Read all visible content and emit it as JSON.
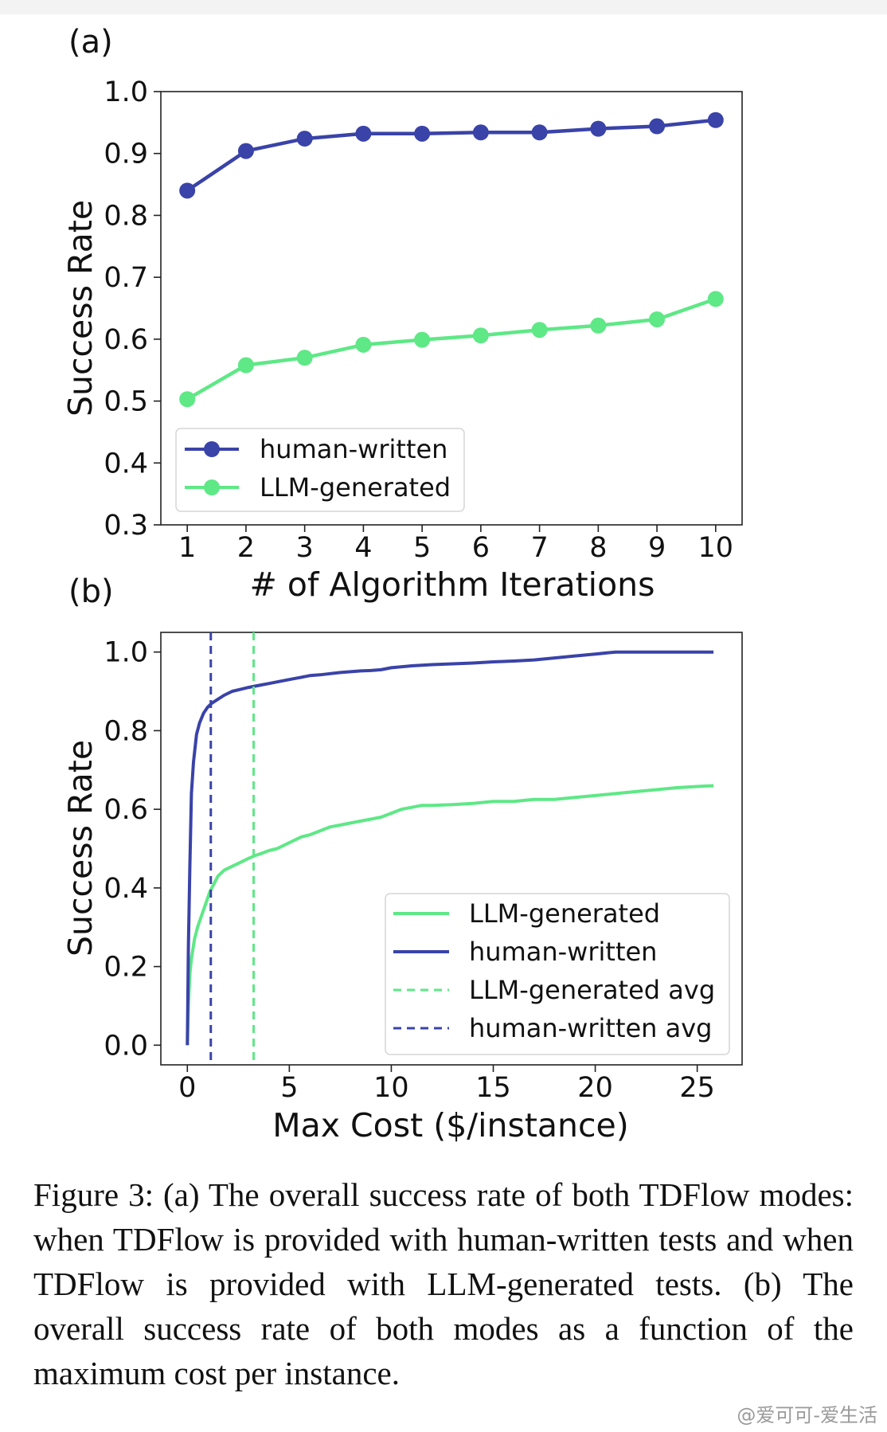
{
  "chart_data": [
    {
      "type": "line",
      "panel_label": "(a)",
      "xlabel": "# of Algorithm Iterations",
      "ylabel": "Success Rate",
      "xlim": [
        0.55,
        10.45
      ],
      "ylim": [
        0.3,
        1.0
      ],
      "x": [
        1,
        2,
        3,
        4,
        5,
        6,
        7,
        8,
        9,
        10
      ],
      "x_ticks": [
        1,
        2,
        3,
        4,
        5,
        6,
        7,
        8,
        9,
        10
      ],
      "y_ticks": [
        0.3,
        0.4,
        0.5,
        0.6,
        0.7,
        0.8,
        0.9,
        1.0
      ],
      "grid": false,
      "legend_position": "bottom-left",
      "series": [
        {
          "name": "human-written",
          "color": "#3a43a8",
          "marker": "circle",
          "values": [
            0.84,
            0.904,
            0.924,
            0.932,
            0.932,
            0.934,
            0.934,
            0.94,
            0.944,
            0.954
          ]
        },
        {
          "name": "LLM-generated",
          "color": "#5ee886",
          "marker": "circle",
          "values": [
            0.503,
            0.558,
            0.57,
            0.591,
            0.599,
            0.606,
            0.615,
            0.622,
            0.632,
            0.665
          ]
        }
      ]
    },
    {
      "type": "line",
      "panel_label": "(b)",
      "xlabel": "Max Cost ($/instance)",
      "ylabel": "Success Rate",
      "xlim": [
        -1.3,
        27.2
      ],
      "ylim": [
        -0.05,
        1.05
      ],
      "x_ticks": [
        0,
        5,
        10,
        15,
        20,
        25
      ],
      "y_ticks": [
        0.0,
        0.2,
        0.4,
        0.6,
        0.8,
        1.0
      ],
      "grid": false,
      "legend_position": "bottom-right",
      "series": [
        {
          "name": "LLM-generated",
          "color": "#5ee886",
          "style": "solid",
          "x": [
            0,
            0.05,
            0.12,
            0.2,
            0.35,
            0.5,
            0.7,
            0.9,
            1.1,
            1.3,
            1.5,
            1.8,
            2.2,
            2.6,
            3.0,
            3.3,
            3.6,
            4.0,
            4.4,
            4.8,
            5.2,
            5.6,
            6.0,
            6.5,
            7.0,
            7.5,
            8.0,
            8.5,
            9.0,
            9.5,
            10.0,
            10.5,
            11.0,
            11.5,
            12.0,
            13.0,
            14.0,
            15.0,
            16.0,
            17.0,
            18.0,
            19.0,
            20.0,
            21.0,
            22.0,
            23.0,
            24.0,
            25.0,
            25.8
          ],
          "values": [
            0.0,
            0.1,
            0.18,
            0.22,
            0.27,
            0.3,
            0.33,
            0.36,
            0.39,
            0.41,
            0.43,
            0.445,
            0.455,
            0.465,
            0.475,
            0.482,
            0.487,
            0.495,
            0.5,
            0.51,
            0.52,
            0.53,
            0.535,
            0.545,
            0.555,
            0.56,
            0.565,
            0.57,
            0.575,
            0.58,
            0.59,
            0.6,
            0.605,
            0.61,
            0.61,
            0.612,
            0.615,
            0.62,
            0.62,
            0.625,
            0.625,
            0.63,
            0.635,
            0.64,
            0.645,
            0.65,
            0.655,
            0.658,
            0.66
          ]
        },
        {
          "name": "human-written",
          "color": "#3a43a8",
          "style": "solid",
          "x": [
            0,
            0.05,
            0.12,
            0.2,
            0.3,
            0.45,
            0.6,
            0.8,
            1.0,
            1.2,
            1.5,
            1.8,
            2.2,
            2.6,
            3.0,
            3.5,
            4.0,
            4.5,
            5.0,
            5.5,
            6.0,
            6.5,
            7.0,
            7.5,
            8.0,
            8.5,
            9.0,
            9.5,
            10.0,
            11.0,
            12.0,
            13.0,
            14.0,
            15.0,
            16.0,
            17.0,
            18.0,
            19.0,
            20.0,
            21.0,
            22.0,
            23.0,
            24.0,
            25.0,
            25.8
          ],
          "values": [
            0.0,
            0.25,
            0.45,
            0.64,
            0.72,
            0.79,
            0.82,
            0.845,
            0.86,
            0.87,
            0.88,
            0.89,
            0.9,
            0.905,
            0.91,
            0.915,
            0.92,
            0.925,
            0.93,
            0.935,
            0.94,
            0.942,
            0.945,
            0.948,
            0.95,
            0.952,
            0.953,
            0.955,
            0.96,
            0.965,
            0.968,
            0.97,
            0.972,
            0.975,
            0.977,
            0.98,
            0.985,
            0.99,
            0.995,
            1.0,
            1.0,
            1.0,
            1.0,
            1.0,
            1.0
          ]
        },
        {
          "name": "LLM-generated avg",
          "color": "#5ee886",
          "style": "dashed",
          "vline_x": 3.25
        },
        {
          "name": "human-written avg",
          "color": "#3a43a8",
          "style": "dashed",
          "vline_x": 1.15
        }
      ]
    }
  ],
  "caption": {
    "text": "Figure 3: (a) The overall success rate of both TDFlow modes: when TDFlow is provided with human-written tests and when TDFlow is provided with LLM-generated tests. (b) The overall success rate of both modes as a function of the maximum cost per instance."
  },
  "watermark": "@爱可可-爱生活"
}
